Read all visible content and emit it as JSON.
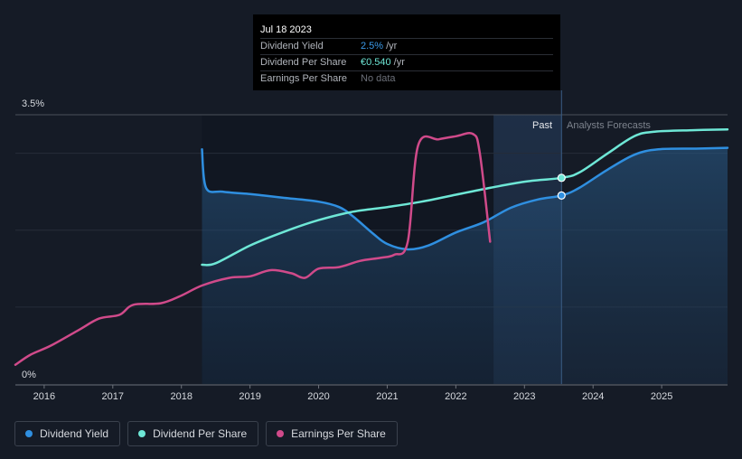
{
  "tooltip": {
    "date": "Jul 18 2023",
    "rows": [
      {
        "label": "Dividend Yield",
        "value": "2.5%",
        "unit": "/yr"
      },
      {
        "label": "Dividend Per Share",
        "value": "€0.540",
        "unit": "/yr"
      },
      {
        "label": "Earnings Per Share",
        "value": "No data",
        "unit": ""
      }
    ]
  },
  "legend": [
    {
      "label": "Dividend Yield",
      "color": "#2f8fe0"
    },
    {
      "label": "Dividend Per Share",
      "color": "#6ee7d6"
    },
    {
      "label": "Earnings Per Share",
      "color": "#d04a8a"
    }
  ],
  "chart_data": {
    "type": "line",
    "x_ticks": [
      "2016",
      "2017",
      "2018",
      "2019",
      "2020",
      "2021",
      "2022",
      "2023",
      "2024",
      "2025"
    ],
    "y_ticks": [
      "3.5%",
      "0%"
    ],
    "ylim": [
      0,
      3.5
    ],
    "xlim": [
      2015.58,
      2025.96
    ],
    "regions": {
      "past_label": "Past",
      "forecast_label": "Analysts Forecasts",
      "past_start": 2022.55,
      "divider": 2023.54,
      "data_start": 2018.3
    },
    "series": [
      {
        "name": "Dividend Yield",
        "color": "#2f8fe0",
        "points": [
          [
            2018.3,
            3.05
          ],
          [
            2018.36,
            2.55
          ],
          [
            2018.6,
            2.5
          ],
          [
            2019.0,
            2.47
          ],
          [
            2019.2,
            2.45
          ],
          [
            2019.5,
            2.42
          ],
          [
            2020.0,
            2.37
          ],
          [
            2020.3,
            2.3
          ],
          [
            2020.5,
            2.18
          ],
          [
            2020.8,
            1.95
          ],
          [
            2021.0,
            1.82
          ],
          [
            2021.3,
            1.75
          ],
          [
            2021.6,
            1.8
          ],
          [
            2022.0,
            1.97
          ],
          [
            2022.4,
            2.1
          ],
          [
            2022.8,
            2.29
          ],
          [
            2023.2,
            2.4
          ],
          [
            2023.54,
            2.45
          ],
          [
            2023.8,
            2.55
          ],
          [
            2024.2,
            2.78
          ],
          [
            2024.6,
            2.98
          ],
          [
            2024.95,
            3.05
          ],
          [
            2025.5,
            3.06
          ],
          [
            2025.96,
            3.07
          ]
        ]
      },
      {
        "name": "Dividend Per Share",
        "color": "#6ee7d6",
        "points": [
          [
            2018.3,
            1.55
          ],
          [
            2018.5,
            1.57
          ],
          [
            2019.0,
            1.8
          ],
          [
            2019.5,
            1.98
          ],
          [
            2020.0,
            2.13
          ],
          [
            2020.5,
            2.24
          ],
          [
            2021.0,
            2.3
          ],
          [
            2021.5,
            2.37
          ],
          [
            2022.0,
            2.46
          ],
          [
            2022.5,
            2.55
          ],
          [
            2023.0,
            2.63
          ],
          [
            2023.54,
            2.68
          ],
          [
            2023.8,
            2.75
          ],
          [
            2024.2,
            2.99
          ],
          [
            2024.6,
            3.22
          ],
          [
            2024.9,
            3.28
          ],
          [
            2025.5,
            3.3
          ],
          [
            2025.96,
            3.31
          ]
        ]
      },
      {
        "name": "Earnings Per Share",
        "color": "#d04a8a",
        "points": [
          [
            2015.58,
            0.25
          ],
          [
            2015.8,
            0.38
          ],
          [
            2016.1,
            0.5
          ],
          [
            2016.5,
            0.7
          ],
          [
            2016.8,
            0.85
          ],
          [
            2017.1,
            0.9
          ],
          [
            2017.3,
            1.03
          ],
          [
            2017.7,
            1.05
          ],
          [
            2018.0,
            1.15
          ],
          [
            2018.3,
            1.28
          ],
          [
            2018.7,
            1.38
          ],
          [
            2019.0,
            1.4
          ],
          [
            2019.3,
            1.48
          ],
          [
            2019.6,
            1.44
          ],
          [
            2019.8,
            1.38
          ],
          [
            2020.0,
            1.5
          ],
          [
            2020.3,
            1.52
          ],
          [
            2020.6,
            1.6
          ],
          [
            2020.9,
            1.64
          ],
          [
            2021.1,
            1.68
          ],
          [
            2021.3,
            1.85
          ],
          [
            2021.45,
            3.1
          ],
          [
            2021.75,
            3.18
          ],
          [
            2022.0,
            3.22
          ],
          [
            2022.25,
            3.25
          ],
          [
            2022.35,
            3.0
          ],
          [
            2022.5,
            1.85
          ]
        ]
      }
    ],
    "markers": [
      {
        "series": "Dividend Per Share",
        "x": 2023.54,
        "y": 2.68
      },
      {
        "series": "Dividend Yield",
        "x": 2023.54,
        "y": 2.45
      }
    ]
  }
}
